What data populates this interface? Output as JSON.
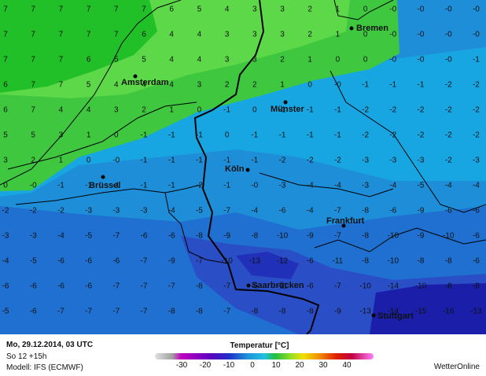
{
  "grid": [
    [
      "7",
      "7",
      "7",
      "7",
      "7",
      "7",
      "6",
      "5",
      "4",
      "3",
      "3",
      "2",
      "1",
      "0",
      "-0",
      "-0",
      "-0",
      "-0"
    ],
    [
      "7",
      "7",
      "7",
      "7",
      "7",
      "6",
      "4",
      "4",
      "3",
      "3",
      "3",
      "2",
      "1",
      "0",
      "-0",
      "-0",
      "-0",
      "-0"
    ],
    [
      "7",
      "7",
      "7",
      "6",
      "5",
      "5",
      "4",
      "4",
      "3",
      "3",
      "2",
      "1",
      "0",
      "0",
      "-0",
      "-0",
      "-0",
      "-1"
    ],
    [
      "6",
      "7",
      "7",
      "5",
      "4",
      "4",
      "4",
      "3",
      "2",
      "2",
      "1",
      "0",
      "-0",
      "-1",
      "-1",
      "-1",
      "-2",
      "-2"
    ],
    [
      "6",
      "7",
      "4",
      "4",
      "3",
      "2",
      "1",
      "0",
      "-1",
      "0",
      "-1",
      "-1",
      "-1",
      "-2",
      "-2",
      "-2",
      "-2",
      "-2"
    ],
    [
      "5",
      "5",
      "3",
      "1",
      "0",
      "-1",
      "-1",
      "-1",
      "0",
      "-1",
      "-1",
      "-1",
      "-1",
      "-2",
      "-2",
      "-2",
      "-2",
      "-2"
    ],
    [
      "3",
      "2",
      "1",
      "0",
      "-0",
      "-1",
      "-1",
      "-1",
      "-1",
      "-1",
      "-2",
      "-2",
      "-2",
      "-3",
      "-3",
      "-3",
      "-2",
      "-3"
    ],
    [
      "0",
      "-0",
      "-1",
      "-1",
      "-1",
      "-1",
      "-1",
      "-2",
      "-1",
      "-0",
      "-3",
      "-4",
      "-4",
      "-3",
      "-4",
      "-5",
      "-4",
      "-4"
    ],
    [
      "-2",
      "-2",
      "-2",
      "-3",
      "-3",
      "-3",
      "-4",
      "-5",
      "-7",
      "-4",
      "-6",
      "-4",
      "-7",
      "-8",
      "-6",
      "-9",
      "-6",
      "-6"
    ],
    [
      "-3",
      "-3",
      "-4",
      "-5",
      "-7",
      "-6",
      "-6",
      "-8",
      "-9",
      "-8",
      "-10",
      "-9",
      "-7",
      "-8",
      "-10",
      "-9",
      "-10",
      "-6"
    ],
    [
      "-4",
      "-5",
      "-6",
      "-6",
      "-6",
      "-7",
      "-9",
      "-7",
      "-10",
      "-13",
      "-12",
      "-6",
      "-11",
      "-8",
      "-10",
      "-8",
      "-8",
      "-6"
    ],
    [
      "-6",
      "-6",
      "-6",
      "-6",
      "-7",
      "-7",
      "-7",
      "-8",
      "-7",
      "-6",
      "-11",
      "-6",
      "-7",
      "-10",
      "-14",
      "-10",
      "-8",
      "-8"
    ],
    [
      "-5",
      "-6",
      "-7",
      "-7",
      "-7",
      "-7",
      "-8",
      "-8",
      "-7",
      "-8",
      "-8",
      "-8",
      "-9",
      "-13",
      "-14",
      "-15",
      "-16",
      "-13"
    ]
  ],
  "cities": [
    "Bremen",
    "Amsterdam",
    "Münster",
    "Brüssel",
    "Köln",
    "Frankfurt",
    "Saarbrücken",
    "Stuttgart"
  ],
  "footer": {
    "date": "Mo, 29.12.2014, 03 UTC",
    "run": "So 12 +15h",
    "model": "Modell: IFS (ECMWF)",
    "legend_title": "Temperatur [°C]",
    "brand": "WetterOnline"
  },
  "legend": {
    "labels": [
      -30,
      -20,
      -10,
      0,
      10,
      20,
      30,
      40
    ]
  }
}
